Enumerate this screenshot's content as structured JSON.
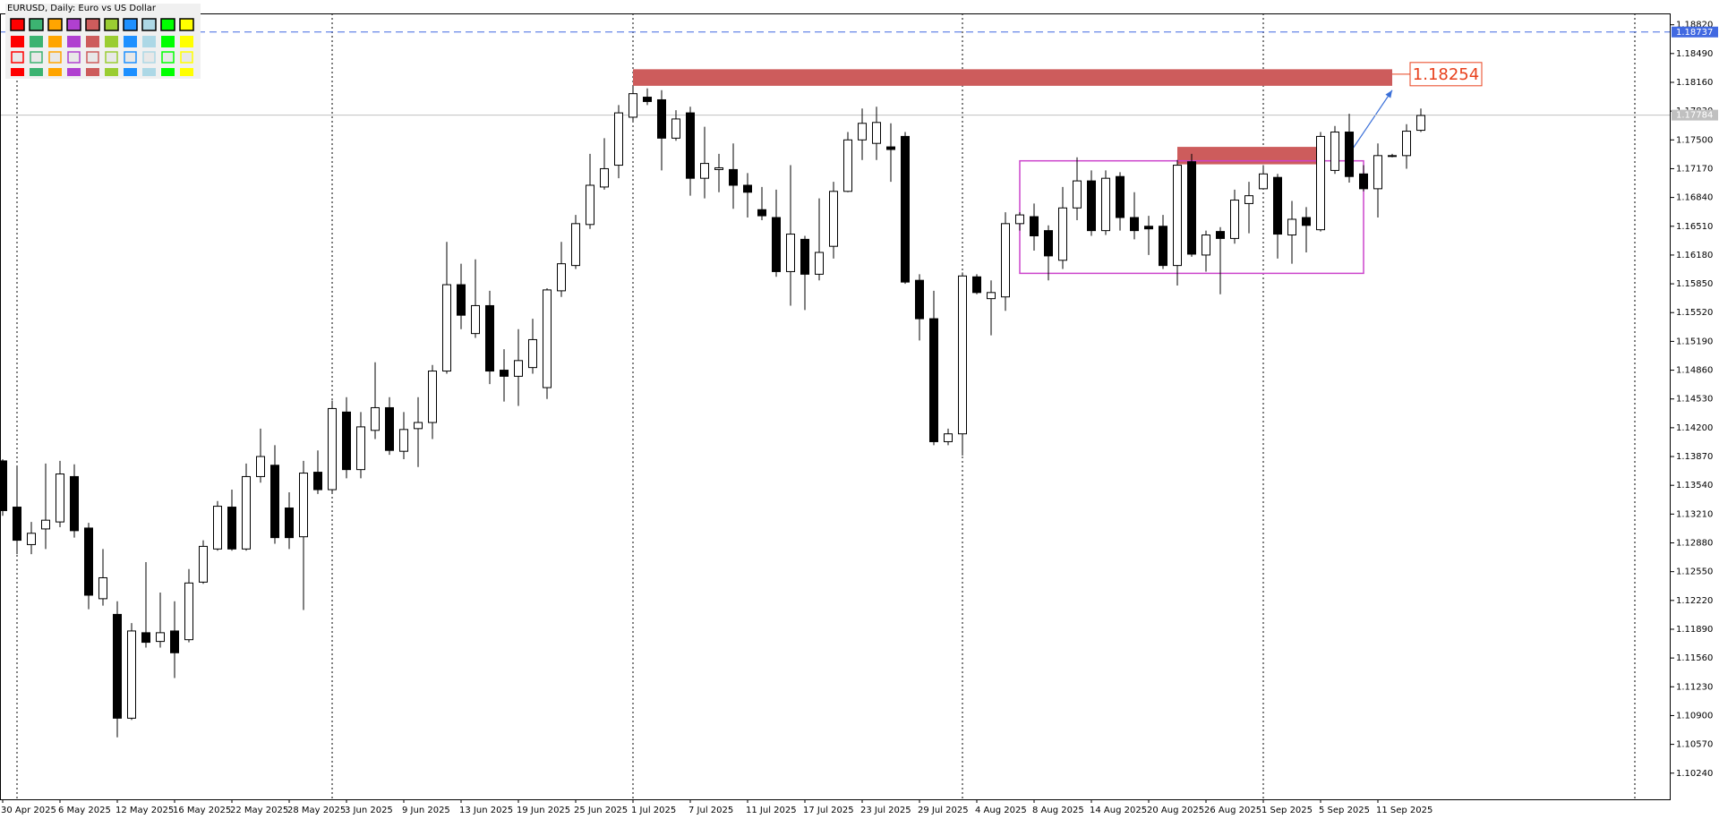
{
  "chart_data": {
    "type": "candlestick",
    "title": "EURUSD, Daily:  Euro vs US Dollar",
    "categories": [
      "30 Apr 2025",
      null,
      null,
      null,
      "6 May 2025",
      null,
      null,
      null,
      "12 May 2025",
      null,
      null,
      null,
      "16 May 2025",
      null,
      null,
      null,
      "22 May 2025",
      null,
      null,
      null,
      "28 May 2025",
      null,
      null,
      null,
      "3 Jun 2025",
      null,
      null,
      null,
      "9 Jun 2025",
      null,
      null,
      null,
      "13 Jun 2025",
      null,
      null,
      null,
      "19 Jun 2025",
      null,
      null,
      null,
      "25 Jun 2025",
      null,
      null,
      null,
      "1 Jul 2025",
      null,
      null,
      null,
      "7 Jul 2025",
      null,
      null,
      null,
      "11 Jul 2025",
      null,
      null,
      null,
      "17 Jul 2025",
      null,
      null,
      null,
      "23 Jul 2025",
      null,
      null,
      null,
      "29 Jul 2025",
      null,
      null,
      null,
      "4 Aug 2025",
      null,
      null,
      null,
      "8 Aug 2025",
      null,
      null,
      null,
      "14 Aug 2025",
      null,
      null,
      null,
      "20 Aug 2025",
      null,
      null,
      null,
      "26 Aug 2025",
      null,
      null,
      null,
      "1 Sep 2025",
      null,
      null,
      null,
      "5 Sep 2025",
      null,
      null,
      null,
      "11 Sep 2025",
      null,
      null,
      null
    ],
    "open": [
      1.1382,
      1.1329,
      1.1286,
      1.1304,
      1.1312,
      1.1364,
      1.1305,
      1.1224,
      1.1206,
      1.1087,
      1.1185,
      1.1175,
      1.1187,
      1.1177,
      1.1243,
      1.1281,
      1.1329,
      1.1281,
      1.1364,
      1.1377,
      1.1328,
      1.1295,
      1.1369,
      1.1349,
      1.1438,
      1.1372,
      1.1417,
      1.1443,
      1.1393,
      1.1419,
      1.1426,
      1.1485,
      1.1584,
      1.1528,
      1.156,
      1.1486,
      1.1479,
      1.1489,
      1.1466,
      1.1577,
      1.1606,
      1.1653,
      1.1696,
      1.1721,
      1.1776,
      1.1799,
      1.1796,
      1.1752,
      1.1781,
      1.1706,
      1.1716,
      1.1716,
      1.1698,
      1.167,
      1.1661,
      1.1599,
      1.1636,
      1.1596,
      1.1628,
      1.1691,
      1.175,
      1.1746,
      1.1742,
      1.1754,
      1.1589,
      1.1545,
      1.1404,
      1.1413,
      1.1593,
      1.1568,
      1.157,
      1.1654,
      1.1662,
      1.1646,
      1.1612,
      1.1672,
      1.1703,
      1.1646,
      1.1708,
      1.1661,
      1.1651,
      1.1651,
      1.1606,
      1.1725,
      1.1618,
      1.1645,
      1.1637,
      1.1677,
      1.1694,
      1.1707,
      1.1641,
      1.1661,
      1.1647,
      1.1715,
      1.1759,
      1.1711,
      1.1694,
      1.1732,
      1.1732,
      1.1761
    ],
    "high": [
      1.1384,
      1.1375,
      1.1312,
      1.1379,
      1.1382,
      1.1378,
      1.1311,
      1.1281,
      1.1221,
      1.1196,
      1.1266,
      1.1231,
      1.1221,
      1.1258,
      1.1291,
      1.1336,
      1.1349,
      1.1379,
      1.1419,
      1.14,
      1.1346,
      1.1382,
      1.1394,
      1.1451,
      1.1455,
      1.1438,
      1.1495,
      1.1455,
      1.1438,
      1.1455,
      1.1492,
      1.1633,
      1.1608,
      1.1613,
      1.1577,
      1.151,
      1.1533,
      1.1545,
      1.158,
      1.1633,
      1.1664,
      1.1734,
      1.1752,
      1.179,
      1.1812,
      1.1809,
      1.1807,
      1.1784,
      1.1788,
      1.1765,
      1.1734,
      1.1746,
      1.1712,
      1.1696,
      1.1693,
      1.1721,
      1.164,
      1.1683,
      1.1702,
      1.1759,
      1.1786,
      1.1788,
      1.1769,
      1.1759,
      1.1596,
      1.1577,
      1.1419,
      1.1598,
      1.1596,
      1.1589,
      1.1667,
      1.1667,
      1.1677,
      1.1652,
      1.1696,
      1.173,
      1.1715,
      1.1715,
      1.1713,
      1.169,
      1.1663,
      1.1664,
      1.1727,
      1.1734,
      1.1646,
      1.165,
      1.1693,
      1.1702,
      1.1721,
      1.1711,
      1.168,
      1.1673,
      1.1759,
      1.1766,
      1.178,
      1.1721,
      1.1746,
      1.1734,
      1.1768,
      1.1786
    ],
    "low": [
      1.1319,
      1.1275,
      1.1275,
      1.1281,
      1.1306,
      1.1294,
      1.1212,
      1.1216,
      1.1065,
      1.1085,
      1.1168,
      1.1168,
      1.1133,
      1.1174,
      1.1241,
      1.1279,
      1.1279,
      1.1279,
      1.1357,
      1.1287,
      1.1281,
      1.1211,
      1.1344,
      1.1346,
      1.1362,
      1.1362,
      1.1407,
      1.1389,
      1.1384,
      1.1375,
      1.1407,
      1.1482,
      1.1533,
      1.1523,
      1.147,
      1.145,
      1.1445,
      1.1482,
      1.1453,
      1.157,
      1.1602,
      1.1648,
      1.1693,
      1.1706,
      1.1771,
      1.179,
      1.1715,
      1.1749,
      1.1686,
      1.1683,
      1.169,
      1.1671,
      1.1661,
      1.1658,
      1.1593,
      1.156,
      1.1555,
      1.1589,
      1.1614,
      1.169,
      1.1727,
      1.1727,
      1.1702,
      1.1585,
      1.152,
      1.14,
      1.14,
      1.1388,
      1.1573,
      1.1526,
      1.1554,
      1.1646,
      1.1623,
      1.1589,
      1.1602,
      1.1658,
      1.164,
      1.1641,
      1.1646,
      1.1636,
      1.1618,
      1.1602,
      1.1583,
      1.1616,
      1.1599,
      1.1573,
      1.1631,
      1.1643,
      1.1693,
      1.1614,
      1.1608,
      1.1621,
      1.1645,
      1.1711,
      1.1701,
      1.1691,
      1.1661,
      1.173,
      1.1717,
      1.1759
    ],
    "close": [
      1.1325,
      1.1291,
      1.1299,
      1.1314,
      1.1367,
      1.1302,
      1.1228,
      1.1248,
      1.1087,
      1.1187,
      1.1174,
      1.1185,
      1.1162,
      1.1242,
      1.1284,
      1.133,
      1.1281,
      1.1364,
      1.1387,
      1.1294,
      1.1294,
      1.1368,
      1.1349,
      1.1442,
      1.1372,
      1.1421,
      1.1443,
      1.1394,
      1.1418,
      1.1426,
      1.1485,
      1.1584,
      1.1549,
      1.156,
      1.1485,
      1.1479,
      1.1497,
      1.1521,
      1.1578,
      1.1608,
      1.1654,
      1.1698,
      1.1717,
      1.1781,
      1.1803,
      1.1794,
      1.1752,
      1.1774,
      1.1706,
      1.1723,
      1.1718,
      1.1698,
      1.169,
      1.1663,
      1.1599,
      1.1642,
      1.1596,
      1.1621,
      1.1691,
      1.175,
      1.1769,
      1.177,
      1.1739,
      1.1587,
      1.1545,
      1.1404,
      1.1413,
      1.1594,
      1.1575,
      1.1575,
      1.1654,
      1.1664,
      1.164,
      1.1617,
      1.1672,
      1.1703,
      1.1646,
      1.1706,
      1.1661,
      1.1646,
      1.1648,
      1.1606,
      1.1721,
      1.1619,
      1.1641,
      1.1637,
      1.1681,
      1.1686,
      1.1711,
      1.1642,
      1.1659,
      1.1652,
      1.1754,
      1.1759,
      1.1708,
      1.1694,
      1.1732,
      1.1731,
      1.176,
      1.1778
    ],
    "up_color": "#ffffff",
    "down_color": "#000000",
    "wick_color": "#000000",
    "ylim": [
      1.0994,
      1.1895
    ],
    "yticks": [
      {
        "value": 1.1024,
        "label": "1.10240"
      },
      {
        "value": 1.1057,
        "label": "1.10570"
      },
      {
        "value": 1.109,
        "label": "1.10900"
      },
      {
        "value": 1.1123,
        "label": "1.11230"
      },
      {
        "value": 1.1156,
        "label": "1.11560"
      },
      {
        "value": 1.1189,
        "label": "1.11890"
      },
      {
        "value": 1.1222,
        "label": "1.12220"
      },
      {
        "value": 1.1255,
        "label": "1.12550"
      },
      {
        "value": 1.1288,
        "label": "1.12880"
      },
      {
        "value": 1.1321,
        "label": "1.13210"
      },
      {
        "value": 1.1354,
        "label": "1.13540"
      },
      {
        "value": 1.1387,
        "label": "1.13870"
      },
      {
        "value": 1.142,
        "label": "1.14200"
      },
      {
        "value": 1.1453,
        "label": "1.14530"
      },
      {
        "value": 1.1486,
        "label": "1.14860"
      },
      {
        "value": 1.1519,
        "label": "1.15190"
      },
      {
        "value": 1.1552,
        "label": "1.15520"
      },
      {
        "value": 1.1585,
        "label": "1.15850"
      },
      {
        "value": 1.1618,
        "label": "1.16180"
      },
      {
        "value": 1.1651,
        "label": "1.16510"
      },
      {
        "value": 1.1684,
        "label": "1.16840"
      },
      {
        "value": 1.1717,
        "label": "1.17170"
      },
      {
        "value": 1.175,
        "label": "1.17500"
      },
      {
        "value": 1.1783,
        "label": "1.17830"
      },
      {
        "value": 1.1816,
        "label": "1.18160"
      },
      {
        "value": 1.1849,
        "label": "1.18490"
      },
      {
        "value": 1.1882,
        "label": "1.18820"
      }
    ],
    "hlines": [
      {
        "value": 1.18737,
        "color": "#4169e1",
        "style": "dashed"
      },
      {
        "value": 1.17784,
        "color": "#c0c0c0",
        "style": "solid"
      }
    ],
    "rectangles": [
      {
        "x": [
          44,
          97
        ],
        "y": [
          1.1812,
          1.1831
        ],
        "fill": "#cd5c5c"
      },
      {
        "x": [
          82,
          92
        ],
        "y": [
          1.1722,
          1.1742
        ],
        "fill": "#cd5c5c"
      },
      {
        "x": [
          71,
          95
        ],
        "y": [
          1.1597,
          1.1726
        ],
        "stroke": "#cc44cc"
      }
    ],
    "price_label": {
      "value": 1.18254,
      "color": "#e8401c"
    },
    "arrow": {
      "x": [
        94,
        97
      ],
      "y": [
        1.1734,
        1.1807
      ],
      "color": "#3a6fd8"
    }
  }
}
